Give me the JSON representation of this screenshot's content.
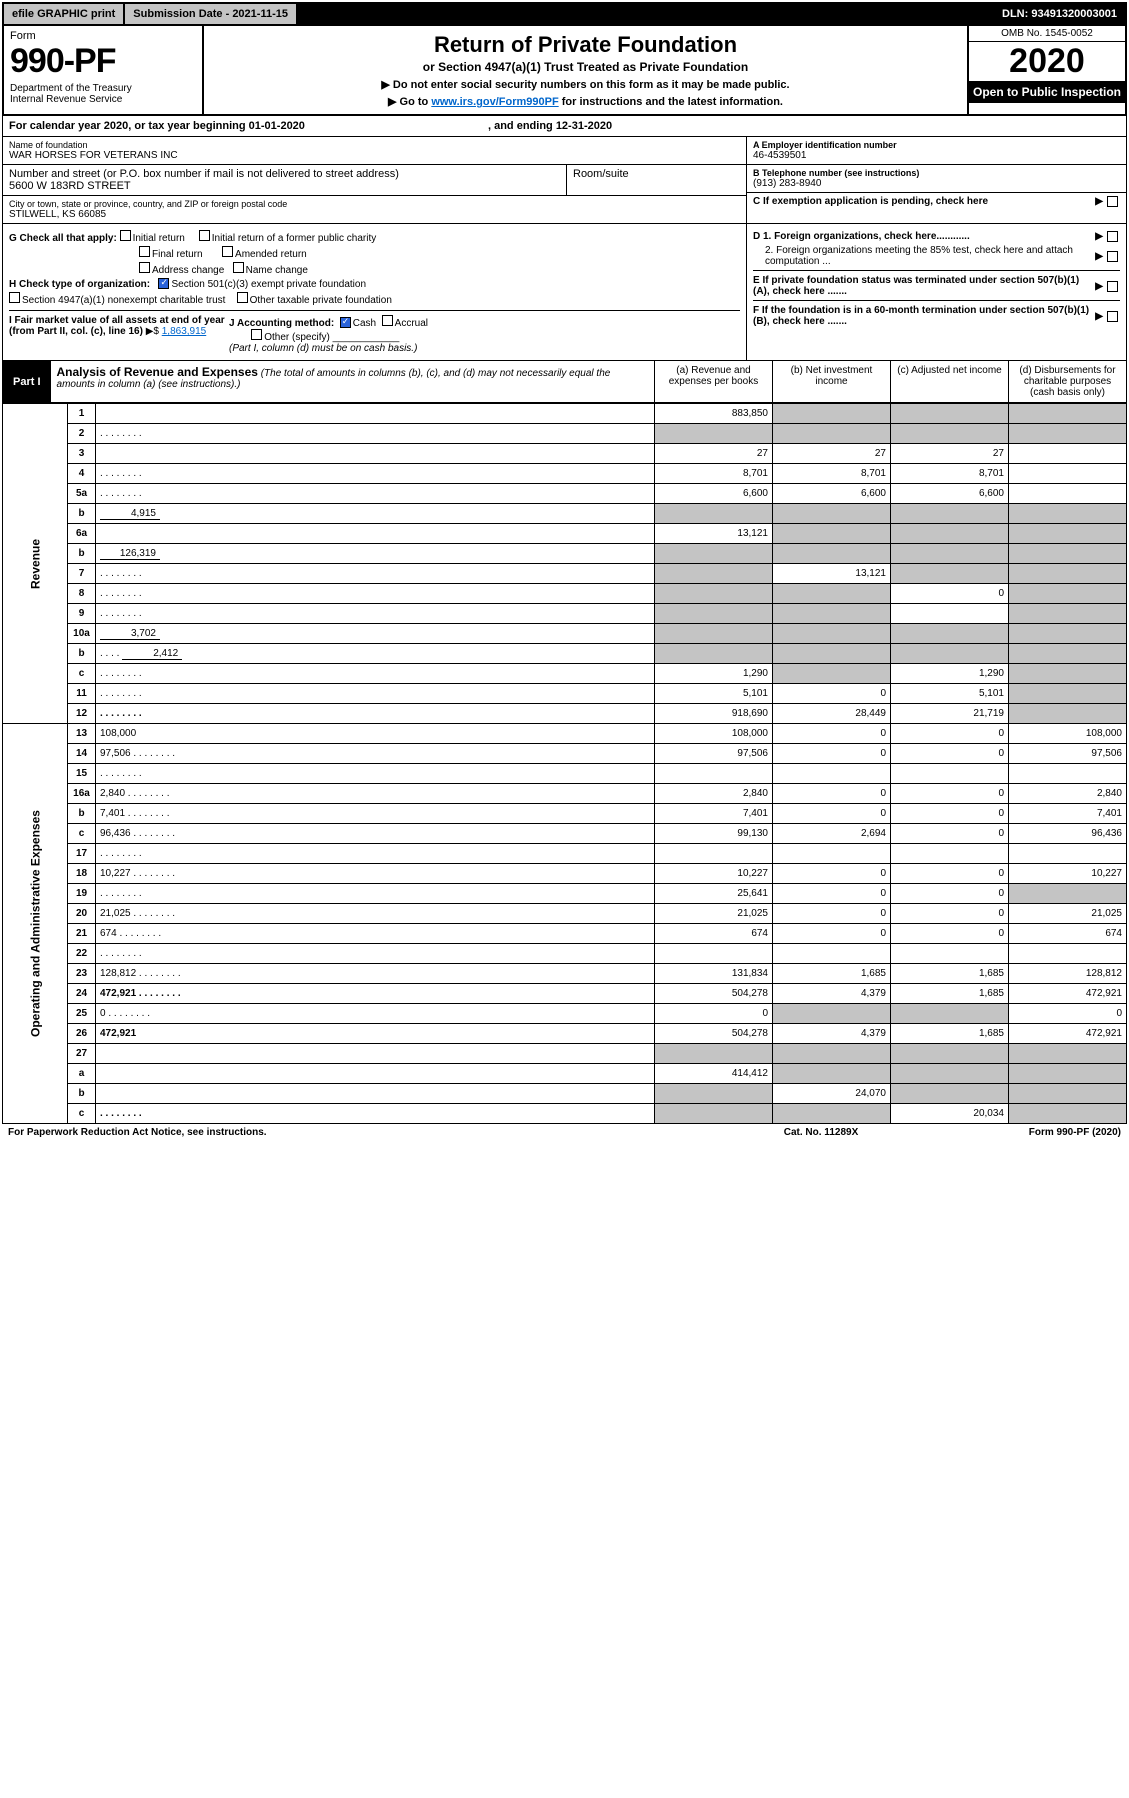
{
  "topbar": {
    "efile": "efile GRAPHIC print",
    "submission": "Submission Date - 2021-11-15",
    "dln": "DLN: 93491320003001"
  },
  "header": {
    "form_word": "Form",
    "form_num": "990-PF",
    "dept": "Department of the Treasury\nInternal Revenue Service",
    "title": "Return of Private Foundation",
    "subtitle": "or Section 4947(a)(1) Trust Treated as Private Foundation",
    "note1": "▶ Do not enter social security numbers on this form as it may be made public.",
    "note2_pre": "▶ Go to ",
    "note2_link": "www.irs.gov/Form990PF",
    "note2_post": " for instructions and the latest information.",
    "omb": "OMB No. 1545-0052",
    "year": "2020",
    "open": "Open to Public Inspection"
  },
  "calendar": {
    "text": "For calendar year 2020, or tax year beginning 01-01-2020",
    "ending": ", and ending 12-31-2020"
  },
  "info": {
    "name_lbl": "Name of foundation",
    "name": "WAR HORSES FOR VETERANS INC",
    "addr_lbl": "Number and street (or P.O. box number if mail is not delivered to street address)",
    "addr": "5600 W 183RD STREET",
    "room_lbl": "Room/suite",
    "city_lbl": "City or town, state or province, country, and ZIP or foreign postal code",
    "city": "STILWELL, KS  66085",
    "ein_lbl": "A Employer identification number",
    "ein": "46-4539501",
    "tel_lbl": "B Telephone number (see instructions)",
    "tel": "(913) 283-8940",
    "c": "C If exemption application is pending, check here",
    "d1": "D 1. Foreign organizations, check here............",
    "d2": "2. Foreign organizations meeting the 85% test, check here and attach computation ...",
    "e": "E  If private foundation status was terminated under section 507(b)(1)(A), check here .......",
    "f": "F  If the foundation is in a 60-month termination under section 507(b)(1)(B), check here ......."
  },
  "g": {
    "label": "G Check all that apply:",
    "initial": "Initial return",
    "initial_former": "Initial return of a former public charity",
    "final": "Final return",
    "amended": "Amended return",
    "addr_change": "Address change",
    "name_change": "Name change"
  },
  "h": {
    "label": "H Check type of organization:",
    "s501": "Section 501(c)(3) exempt private foundation",
    "s4947": "Section 4947(a)(1) nonexempt charitable trust",
    "other_taxable": "Other taxable private foundation"
  },
  "i": {
    "label": "I Fair market value of all assets at end of year (from Part II, col. (c), line 16)",
    "value": "1,863,915"
  },
  "j": {
    "label": "J Accounting method:",
    "cash": "Cash",
    "accrual": "Accrual",
    "other": "Other (specify)",
    "note": "(Part I, column (d) must be on cash basis.)"
  },
  "part1": {
    "tag": "Part I",
    "title": "Analysis of Revenue and Expenses",
    "subtitle": "(The total of amounts in columns (b), (c), and (d) may not necessarily equal the amounts in column (a) (see instructions).)",
    "col_a": "(a) Revenue and expenses per books",
    "col_b": "(b) Net investment income",
    "col_c": "(c) Adjusted net income",
    "col_d": "(d) Disbursements for charitable purposes (cash basis only)"
  },
  "sections": {
    "revenue": "Revenue",
    "expenses": "Operating and Administrative Expenses"
  },
  "rows": [
    {
      "n": "1",
      "d": "",
      "a": "883,850",
      "b": "",
      "c": "",
      "ga": false,
      "gb": true,
      "gc": true,
      "gd": true
    },
    {
      "n": "2",
      "d": "",
      "a": "",
      "b": "",
      "c": "",
      "ga": true,
      "gb": true,
      "gc": true,
      "gd": true,
      "dots": true
    },
    {
      "n": "3",
      "d": "",
      "a": "27",
      "b": "27",
      "c": "27"
    },
    {
      "n": "4",
      "d": "",
      "a": "8,701",
      "b": "8,701",
      "c": "8,701",
      "dots": true
    },
    {
      "n": "5a",
      "d": "",
      "a": "6,600",
      "b": "6,600",
      "c": "6,600",
      "dots": true
    },
    {
      "n": "b",
      "d": "",
      "inline": "4,915",
      "a": "",
      "b": "",
      "c": "",
      "ga": true,
      "gb": true,
      "gc": true,
      "gd": true
    },
    {
      "n": "6a",
      "d": "",
      "a": "13,121",
      "b": "",
      "c": "",
      "gb": true,
      "gc": true,
      "gd": true
    },
    {
      "n": "b",
      "d": "",
      "inline": "126,319",
      "a": "",
      "b": "",
      "c": "",
      "ga": true,
      "gb": true,
      "gc": true,
      "gd": true
    },
    {
      "n": "7",
      "d": "",
      "a": "",
      "b": "13,121",
      "c": "",
      "ga": true,
      "gc": true,
      "gd": true,
      "dots": true
    },
    {
      "n": "8",
      "d": "",
      "a": "",
      "b": "",
      "c": "0",
      "ga": true,
      "gb": true,
      "gd": true,
      "dots": true
    },
    {
      "n": "9",
      "d": "",
      "a": "",
      "b": "",
      "c": "",
      "ga": true,
      "gb": true,
      "gd": true,
      "dots": true
    },
    {
      "n": "10a",
      "d": "",
      "inline": "3,702",
      "a": "",
      "b": "",
      "c": "",
      "ga": true,
      "gb": true,
      "gc": true,
      "gd": true
    },
    {
      "n": "b",
      "d": "",
      "inline": "2,412",
      "a": "",
      "b": "",
      "c": "",
      "ga": true,
      "gb": true,
      "gc": true,
      "gd": true,
      "dots": true
    },
    {
      "n": "c",
      "d": "",
      "a": "1,290",
      "b": "",
      "c": "1,290",
      "gb": true,
      "gd": true,
      "dots": true
    },
    {
      "n": "11",
      "d": "",
      "a": "5,101",
      "b": "0",
      "c": "5,101",
      "gd": true,
      "dots": true
    },
    {
      "n": "12",
      "d": "",
      "a": "918,690",
      "b": "28,449",
      "c": "21,719",
      "gd": true,
      "bold": true,
      "dots": true
    },
    {
      "n": "13",
      "d": "108,000",
      "a": "108,000",
      "b": "0",
      "c": "0"
    },
    {
      "n": "14",
      "d": "97,506",
      "a": "97,506",
      "b": "0",
      "c": "0",
      "dots": true
    },
    {
      "n": "15",
      "d": "",
      "a": "",
      "b": "",
      "c": "",
      "dots": true
    },
    {
      "n": "16a",
      "d": "2,840",
      "a": "2,840",
      "b": "0",
      "c": "0",
      "dots": true
    },
    {
      "n": "b",
      "d": "7,401",
      "a": "7,401",
      "b": "0",
      "c": "0",
      "dots": true
    },
    {
      "n": "c",
      "d": "96,436",
      "a": "99,130",
      "b": "2,694",
      "c": "0",
      "dots": true
    },
    {
      "n": "17",
      "d": "",
      "a": "",
      "b": "",
      "c": "",
      "dots": true
    },
    {
      "n": "18",
      "d": "10,227",
      "a": "10,227",
      "b": "0",
      "c": "0",
      "dots": true
    },
    {
      "n": "19",
      "d": "",
      "a": "25,641",
      "b": "0",
      "c": "0",
      "gd": true,
      "dots": true
    },
    {
      "n": "20",
      "d": "21,025",
      "a": "21,025",
      "b": "0",
      "c": "0",
      "dots": true
    },
    {
      "n": "21",
      "d": "674",
      "a": "674",
      "b": "0",
      "c": "0",
      "dots": true
    },
    {
      "n": "22",
      "d": "",
      "a": "",
      "b": "",
      "c": "",
      "dots": true
    },
    {
      "n": "23",
      "d": "128,812",
      "a": "131,834",
      "b": "1,685",
      "c": "1,685",
      "dots": true
    },
    {
      "n": "24",
      "d": "472,921",
      "a": "504,278",
      "b": "4,379",
      "c": "1,685",
      "bold": true,
      "dots": true
    },
    {
      "n": "25",
      "d": "0",
      "a": "0",
      "b": "",
      "c": "",
      "gb": true,
      "gc": true,
      "dots": true
    },
    {
      "n": "26",
      "d": "472,921",
      "a": "504,278",
      "b": "4,379",
      "c": "1,685",
      "bold": true
    },
    {
      "n": "27",
      "d": "",
      "a": "",
      "b": "",
      "c": "",
      "ga": true,
      "gb": true,
      "gc": true,
      "gd": true
    },
    {
      "n": "a",
      "d": "",
      "a": "414,412",
      "b": "",
      "c": "",
      "gb": true,
      "gc": true,
      "gd": true,
      "bold": true
    },
    {
      "n": "b",
      "d": "",
      "a": "",
      "b": "24,070",
      "c": "",
      "ga": true,
      "gc": true,
      "gd": true,
      "bold": true
    },
    {
      "n": "c",
      "d": "",
      "a": "",
      "b": "",
      "c": "20,034",
      "ga": true,
      "gb": true,
      "gd": true,
      "bold": true,
      "dots": true
    }
  ],
  "footer": {
    "left": "For Paperwork Reduction Act Notice, see instructions.",
    "center": "Cat. No. 11289X",
    "right": "Form 990-PF (2020)"
  },
  "colors": {
    "gray": "#c4c4c4",
    "link": "#0066cc",
    "check": "#2962d9"
  }
}
